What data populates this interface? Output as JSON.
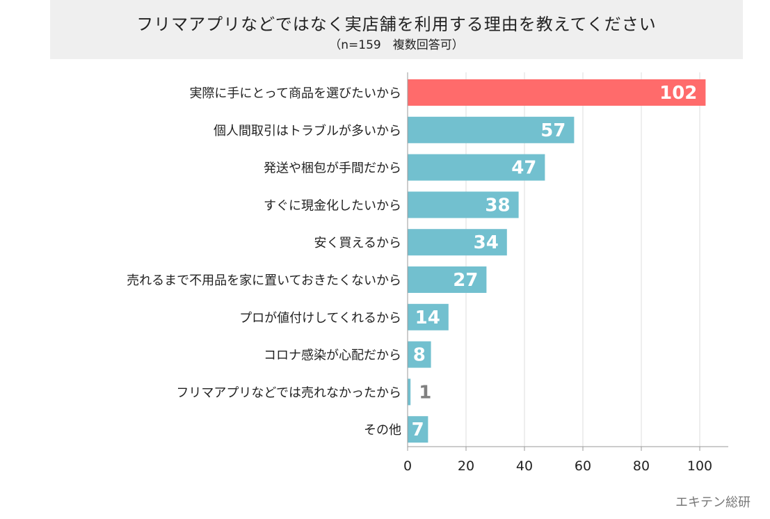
{
  "title": "フリマアプリなどではなく実店舗を利用する理由を教えてください",
  "subtitle": "（n=159　複数回答可）",
  "source": "エキテン総研",
  "colors": {
    "highlight": "#ff6b6b",
    "bar": "#72c0cf",
    "label_inside": "#ffffff",
    "label_outside": "#808080",
    "grid": "#dddddd",
    "axis": "#999999"
  },
  "chart_data": {
    "type": "bar",
    "orientation": "horizontal",
    "title": "フリマアプリなどではなく実店舗を利用する理由を教えてください",
    "subtitle": "（n=159　複数回答可）",
    "categories": [
      "実際に手にとって商品を選びたいから",
      "個人間取引はトラブルが多いから",
      "発送や梱包が手間だから",
      "すぐに現金化したいから",
      "安く買えるから",
      "売れるまで不用品を家に置いておきたくないから",
      "プロが値付けしてくれるから",
      "コロナ感染が心配だから",
      "フリマアプリなどでは売れなかったから",
      "その他"
    ],
    "values": [
      102,
      57,
      47,
      38,
      34,
      27,
      14,
      8,
      1,
      7
    ],
    "highlight_index": 0,
    "xlim": [
      0,
      110
    ],
    "xticks": [
      0,
      20,
      40,
      60,
      80,
      100
    ],
    "grid": true,
    "xlabel": "",
    "ylabel": ""
  }
}
